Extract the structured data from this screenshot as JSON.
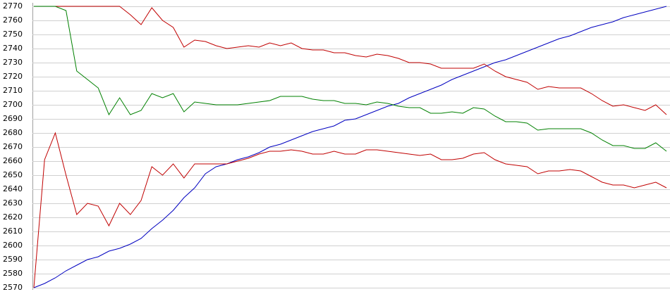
{
  "chart_data": {
    "type": "line",
    "ylim": [
      2570,
      2770
    ],
    "yticks": [
      2570,
      2580,
      2590,
      2600,
      2610,
      2620,
      2630,
      2640,
      2650,
      2660,
      2670,
      2680,
      2690,
      2700,
      2710,
      2720,
      2730,
      2740,
      2750,
      2760,
      2770
    ],
    "grid": true,
    "series": [
      {
        "color": "#0000c0",
        "values": [
          2570,
          2573,
          2577,
          2582,
          2586,
          2590,
          2592,
          2596,
          2598,
          2601,
          2605,
          2612,
          2618,
          2625,
          2634,
          2641,
          2651,
          2656,
          2658,
          2661,
          2663,
          2666,
          2670,
          2672,
          2675,
          2678,
          2681,
          2683,
          2685,
          2689,
          2690,
          2693,
          2696,
          2699,
          2701,
          2705,
          2708,
          2711,
          2714,
          2718,
          2721,
          2724,
          2727,
          2730,
          2732,
          2735,
          2738,
          2741,
          2744,
          2747,
          2749,
          2752,
          2755,
          2757,
          2759,
          2762,
          2764,
          2766,
          2768,
          2770
        ]
      },
      {
        "color": "#c00000",
        "values": [
          2770,
          2770,
          2770,
          2770,
          2770,
          2770,
          2770,
          2770,
          2770,
          2764,
          2757,
          2769,
          2760,
          2755,
          2741,
          2746,
          2745,
          2742,
          2740,
          2741,
          2742,
          2741,
          2744,
          2742,
          2744,
          2740,
          2739,
          2739,
          2737,
          2737,
          2735,
          2734,
          2736,
          2735,
          2733,
          2730,
          2730,
          2729,
          2726,
          2726,
          2726,
          2726,
          2729,
          2724,
          2720,
          2718,
          2716,
          2711,
          2713,
          2712,
          2712,
          2712,
          2708,
          2703,
          2699,
          2700,
          2698,
          2696,
          2700,
          2693
        ]
      },
      {
        "color": "#008000",
        "values": [
          2770,
          2770,
          2770,
          2767,
          2724,
          2718,
          2712,
          2693,
          2705,
          2693,
          2696,
          2708,
          2705,
          2708,
          2695,
          2702,
          2701,
          2700,
          2700,
          2700,
          2701,
          2702,
          2703,
          2706,
          2706,
          2706,
          2704,
          2703,
          2703,
          2701,
          2701,
          2700,
          2702,
          2701,
          2699,
          2698,
          2698,
          2694,
          2694,
          2695,
          2694,
          2698,
          2697,
          2692,
          2688,
          2688,
          2687,
          2682,
          2683,
          2683,
          2683,
          2683,
          2680,
          2675,
          2671,
          2671,
          2669,
          2669,
          2673,
          2667
        ]
      },
      {
        "color": "#c00000",
        "values": [
          2570,
          2661,
          2680,
          2650,
          2622,
          2630,
          2628,
          2614,
          2630,
          2622,
          2632,
          2656,
          2650,
          2658,
          2648,
          2658,
          2658,
          2658,
          2658,
          2660,
          2662,
          2665,
          2667,
          2667,
          2668,
          2667,
          2665,
          2665,
          2667,
          2665,
          2665,
          2668,
          2668,
          2667,
          2666,
          2665,
          2664,
          2665,
          2661,
          2661,
          2662,
          2665,
          2666,
          2661,
          2658,
          2657,
          2656,
          2651,
          2653,
          2653,
          2654,
          2653,
          2649,
          2645,
          2643,
          2643,
          2641,
          2643,
          2645,
          2641
        ]
      }
    ]
  }
}
